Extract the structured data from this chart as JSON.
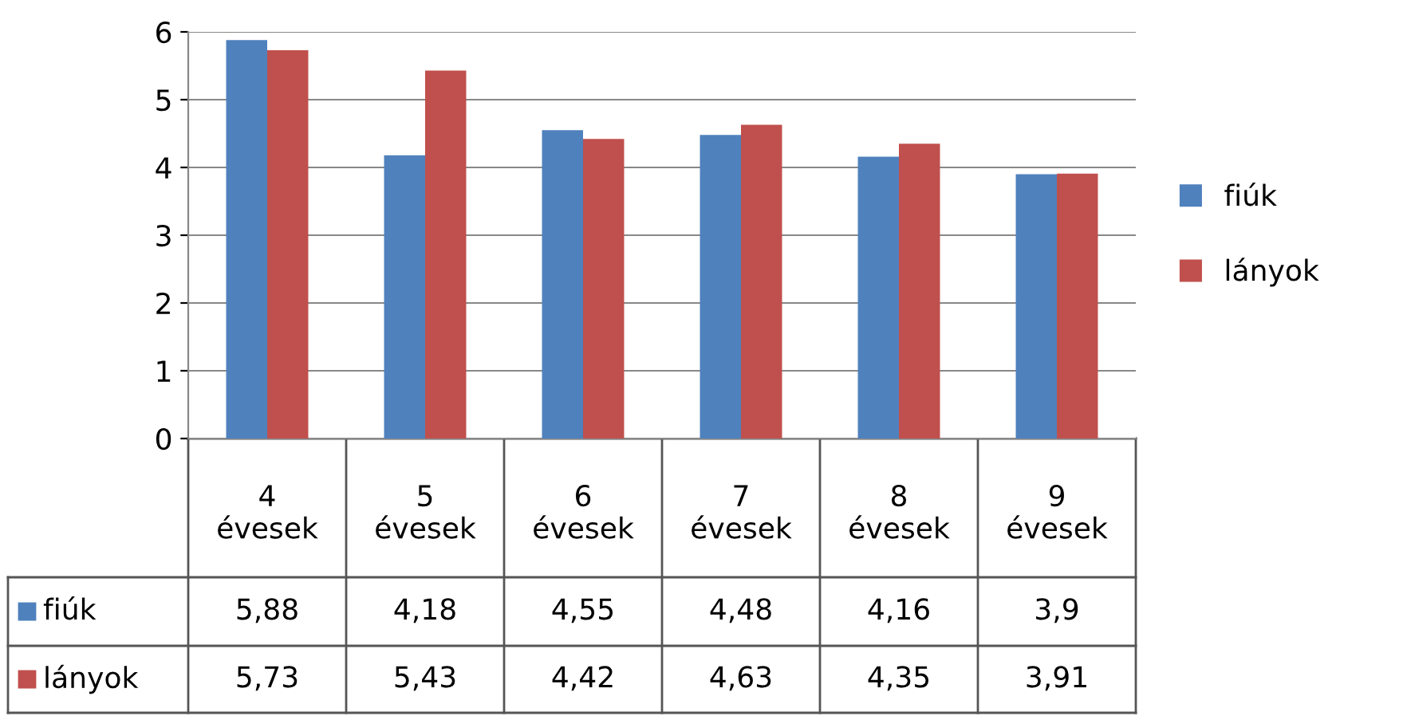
{
  "chart_data": {
    "type": "bar",
    "categories": [
      "4\névesek",
      "5\névesek",
      "6\névesek",
      "7\névesek",
      "8\névesek",
      "9\névesek"
    ],
    "series": [
      {
        "name": "fiúk",
        "color": "#4f81bd",
        "values": [
          5.88,
          4.18,
          4.55,
          4.48,
          4.16,
          3.9
        ],
        "value_labels": [
          "5,88",
          "4,18",
          "4,55",
          "4,48",
          "4,16",
          "3,9"
        ]
      },
      {
        "name": "lányok",
        "color": "#c0504d",
        "values": [
          5.73,
          5.43,
          4.42,
          4.63,
          4.35,
          3.91
        ],
        "value_labels": [
          "5,73",
          "5,43",
          "4,42",
          "4,63",
          "4,35",
          "3,91"
        ]
      }
    ],
    "ylim": [
      0,
      6
    ],
    "yticks": [
      0,
      1,
      2,
      3,
      4,
      5,
      6
    ],
    "grid": "y",
    "legend": "right"
  }
}
